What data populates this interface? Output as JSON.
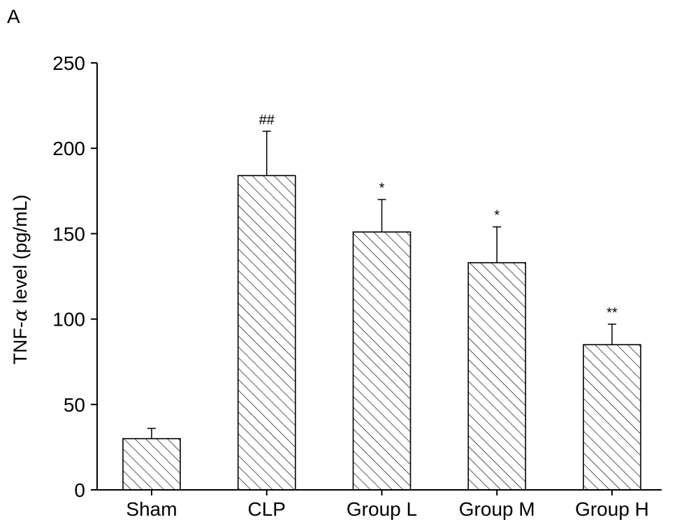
{
  "panel_label": "A",
  "chart_data": {
    "type": "bar",
    "categories": [
      "Sham",
      "CLP",
      "Group L",
      "Group M",
      "Group H"
    ],
    "values": [
      30,
      184,
      151,
      133,
      85
    ],
    "errors": [
      6,
      26,
      19,
      21,
      12
    ],
    "annotations": [
      "",
      "##",
      "*",
      "*",
      "**"
    ],
    "ylabel_prefix": "TNF-",
    "ylabel_symbol": "α",
    "ylabel_suffix": " level (pg/mL)",
    "ylim": [
      0,
      250
    ],
    "yticks": [
      0,
      50,
      100,
      150,
      200,
      250
    ],
    "grid": false,
    "bar_fill": "hatched diagonal lines",
    "bar_color": "#000000"
  }
}
